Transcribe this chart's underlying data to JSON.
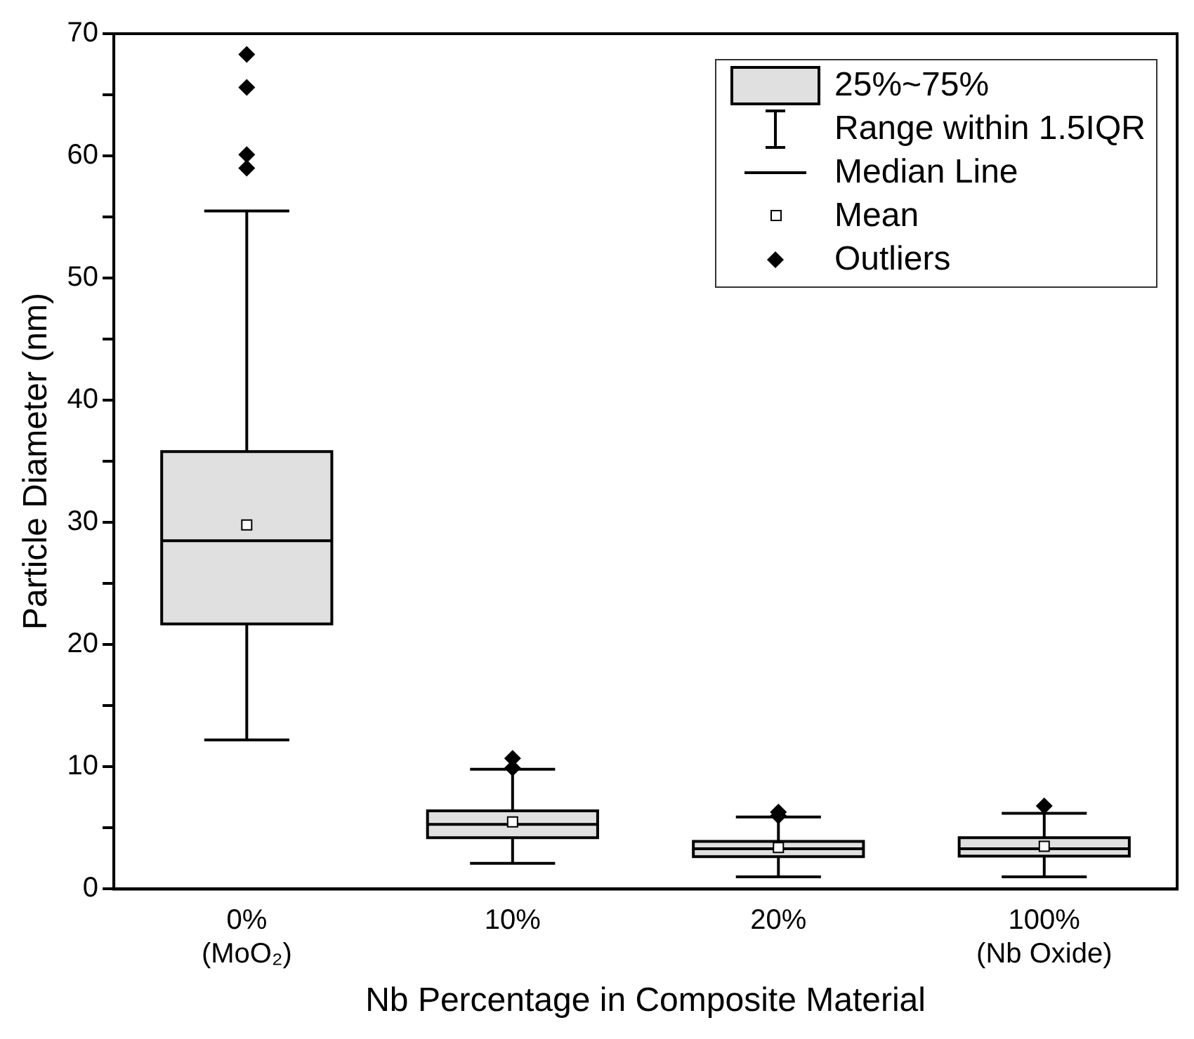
{
  "chart_data": {
    "type": "box",
    "xlabel": "Nb Percentage in Composite Material",
    "ylabel": "Particle Diameter (nm)",
    "categories": [
      "0%\n(MoO₂)",
      "10%",
      "20%",
      "100%\n(Nb Oxide)"
    ],
    "series": [
      {
        "name": "25%~75%",
        "color": "#e0e0e0",
        "boxes": [
          {
            "low": 12.2,
            "q1": 21.7,
            "median": 28.5,
            "q3": 35.8,
            "high": 55.5,
            "mean": 29.8,
            "outliers": [
              59,
              60.1,
              65.6,
              68.3
            ]
          },
          {
            "low": 2.1,
            "q1": 4.2,
            "median": 5.3,
            "q3": 6.4,
            "high": 9.8,
            "mean": 5.5,
            "outliers": [
              9.9,
              10.7
            ]
          },
          {
            "low": 1.0,
            "q1": 2.65,
            "median": 3.3,
            "q3": 3.9,
            "high": 5.9,
            "mean": 3.4,
            "outliers": [
              6.0,
              6.3
            ]
          },
          {
            "low": 1.0,
            "q1": 2.7,
            "median": 3.3,
            "q3": 4.2,
            "high": 6.2,
            "mean": 3.5,
            "outliers": [
              6.8
            ]
          }
        ]
      }
    ],
    "annotations": [
      "Range within 1.5IQR",
      "Median Line",
      "Mean",
      "Outliers"
    ],
    "ylim": [
      0,
      70
    ],
    "yticks": [
      0,
      {
        "value": 5,
        "label": null
      },
      10,
      {
        "value": 15,
        "label": null
      },
      20,
      {
        "value": 25,
        "label": null
      },
      30,
      {
        "value": 35,
        "label": null
      },
      40,
      {
        "value": 45,
        "label": null
      },
      50,
      {
        "value": 55,
        "label": null
      },
      60,
      {
        "value": 65,
        "label": null
      },
      70
    ],
    "legend": "top right",
    "grid": false,
    "marker": "diamond"
  }
}
